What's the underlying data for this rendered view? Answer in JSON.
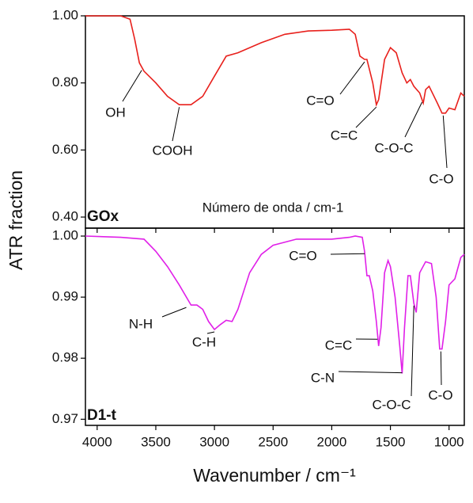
{
  "chart_data": [
    {
      "type": "line",
      "ylabel": "ATR fraction",
      "label": "GOx",
      "note": "Número de onda / cm-1",
      "xlim": [
        4100,
        870
      ],
      "ylim": [
        0.367,
        1.0
      ],
      "xticks": [
        4000,
        3500,
        3000,
        2500,
        2000,
        1500,
        1000
      ],
      "yticks": [
        {
          "value": 1.0,
          "label": "1.00"
        },
        {
          "value": 0.8,
          "label": "0.80"
        },
        {
          "value": 0.6,
          "label": "0.60"
        },
        {
          "value": 0.4,
          "label": "0.40"
        }
      ],
      "series": [
        {
          "name": "GOx",
          "color": "#e8201c",
          "x": [
            4100,
            3800,
            3720,
            3680,
            3640,
            3600,
            3500,
            3400,
            3300,
            3200,
            3100,
            3000,
            2900,
            2800,
            2600,
            2400,
            2200,
            2000,
            1850,
            1800,
            1760,
            1720,
            1700,
            1650,
            1620,
            1600,
            1550,
            1500,
            1450,
            1400,
            1360,
            1330,
            1300,
            1250,
            1220,
            1200,
            1170,
            1100,
            1060,
            1030,
            1000,
            950,
            900,
            870
          ],
          "values": [
            1.0,
            1.0,
            0.99,
            0.93,
            0.86,
            0.835,
            0.8,
            0.76,
            0.735,
            0.735,
            0.76,
            0.82,
            0.88,
            0.89,
            0.92,
            0.945,
            0.955,
            0.957,
            0.96,
            0.945,
            0.88,
            0.87,
            0.87,
            0.8,
            0.735,
            0.75,
            0.87,
            0.905,
            0.89,
            0.83,
            0.8,
            0.81,
            0.79,
            0.77,
            0.74,
            0.78,
            0.79,
            0.74,
            0.71,
            0.71,
            0.725,
            0.72,
            0.77,
            0.76
          ]
        }
      ],
      "annotations": [
        {
          "text": "OH",
          "x": 3620,
          "y": 0.845
        },
        {
          "text": "COOH",
          "x": 3300,
          "y": 0.735
        },
        {
          "text": "C=O",
          "x": 1720,
          "y": 0.87
        },
        {
          "text": "C=C",
          "x": 1620,
          "y": 0.735
        },
        {
          "text": "C-O-C",
          "x": 1230,
          "y": 0.75
        },
        {
          "text": "C-O",
          "x": 1050,
          "y": 0.71
        }
      ]
    },
    {
      "type": "line",
      "xlabel": "Wavenumber / cm⁻¹",
      "label": "D1-t",
      "xlim": [
        4100,
        870
      ],
      "ylim": [
        0.969,
        1.0013
      ],
      "xticks": [
        4000,
        3500,
        3000,
        2500,
        2000,
        1500,
        1000
      ],
      "yticks": [
        {
          "value": 1.0,
          "label": "1.00"
        },
        0.99,
        0.98,
        0.97
      ],
      "series": [
        {
          "name": "D1-t",
          "color": "#e020e8",
          "x": [
            4100,
            3800,
            3600,
            3500,
            3400,
            3300,
            3200,
            3150,
            3100,
            3050,
            3000,
            2950,
            2900,
            2850,
            2800,
            2700,
            2600,
            2500,
            2300,
            2000,
            1850,
            1800,
            1740,
            1720,
            1700,
            1680,
            1650,
            1620,
            1600,
            1580,
            1550,
            1520,
            1500,
            1460,
            1420,
            1400,
            1380,
            1350,
            1330,
            1300,
            1280,
            1250,
            1200,
            1150,
            1110,
            1080,
            1060,
            1030,
            1000,
            950,
            900,
            870
          ],
          "values": [
            1.0,
            0.9998,
            0.9995,
            0.9975,
            0.995,
            0.992,
            0.9887,
            0.9887,
            0.988,
            0.986,
            0.9847,
            0.9855,
            0.9862,
            0.986,
            0.988,
            0.994,
            0.997,
            0.9985,
            0.9995,
            0.9995,
            0.9998,
            1.0,
            0.9998,
            0.9975,
            0.9935,
            0.9935,
            0.991,
            0.986,
            0.982,
            0.985,
            0.994,
            0.996,
            0.995,
            0.99,
            0.982,
            0.9775,
            0.985,
            0.9935,
            0.9935,
            0.989,
            0.9875,
            0.994,
            0.9958,
            0.9955,
            0.99,
            0.9815,
            0.9815,
            0.986,
            0.992,
            0.993,
            0.9965,
            0.997
          ]
        }
      ],
      "annotations": [
        {
          "text": "C=O",
          "x": 1720,
          "y": 0.9975
        },
        {
          "text": "N-H",
          "x": 3240,
          "y": 0.9887
        },
        {
          "text": "C-H",
          "x": 3000,
          "y": 0.9847
        },
        {
          "text": "C=C",
          "x": 1610,
          "y": 0.9835
        },
        {
          "text": "C-N",
          "x": 1400,
          "y": 0.978
        },
        {
          "text": "C-O-C",
          "x": 1300,
          "y": 0.989
        },
        {
          "text": "C-O",
          "x": 1070,
          "y": 0.9815
        }
      ]
    }
  ]
}
